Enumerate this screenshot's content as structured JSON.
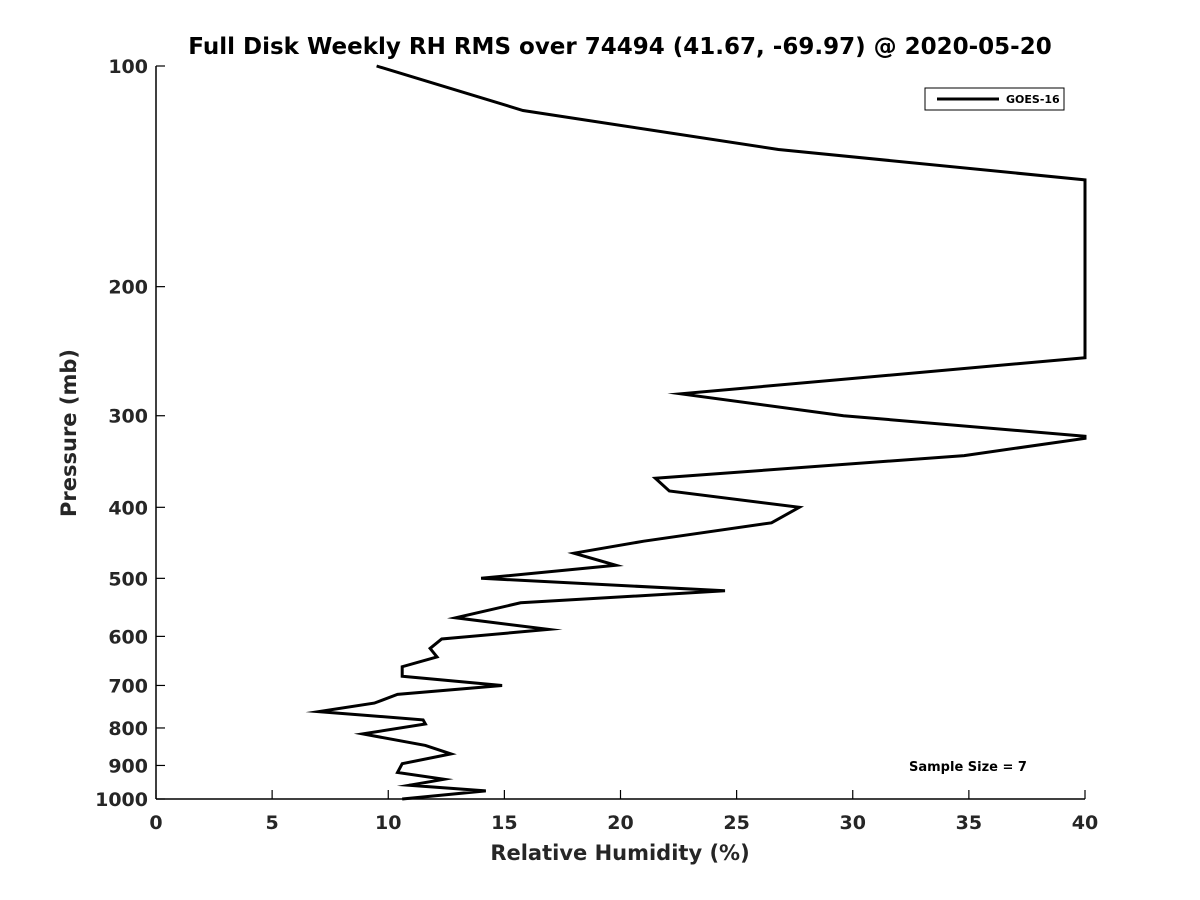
{
  "chart_data": {
    "type": "line",
    "title": "Full Disk Weekly RH RMS over 74494 (41.67, -69.97) @ 2020-05-20",
    "xlabel": "Relative Humidity (%)",
    "ylabel": "Pressure (mb)",
    "xlim": [
      0,
      40
    ],
    "ylim": [
      100,
      1000
    ],
    "y_scale": "log",
    "y_reversed": true,
    "grid": false,
    "legend_position": "top-right",
    "xticks": [
      "0",
      "5",
      "10",
      "15",
      "20",
      "25",
      "30",
      "35",
      "40"
    ],
    "yticks": [
      "100",
      "200",
      "300",
      "400",
      "500",
      "600",
      "700",
      "800",
      "900",
      "1000"
    ],
    "legend": [
      "GOES-16"
    ],
    "annotation": "Sample Size = 7",
    "series": [
      {
        "name": "GOES-16",
        "color": "#000000",
        "points": [
          [
            9.5,
            100
          ],
          [
            15.8,
            115
          ],
          [
            26.8,
            130
          ],
          [
            40.0,
            143
          ],
          [
            40.0,
            250
          ],
          [
            22.6,
            280
          ],
          [
            29.6,
            300
          ],
          [
            40.0,
            320
          ],
          [
            40.0,
            322
          ],
          [
            34.8,
            340
          ],
          [
            21.5,
            365
          ],
          [
            22.1,
            380
          ],
          [
            27.7,
            400
          ],
          [
            26.5,
            420
          ],
          [
            21.0,
            445
          ],
          [
            18.0,
            462
          ],
          [
            19.8,
            480
          ],
          [
            14.0,
            500
          ],
          [
            24.5,
            520
          ],
          [
            15.7,
            540
          ],
          [
            12.9,
            566
          ],
          [
            16.9,
            587
          ],
          [
            12.3,
            605
          ],
          [
            11.8,
            623
          ],
          [
            12.1,
            640
          ],
          [
            10.6,
            660
          ],
          [
            10.6,
            680
          ],
          [
            14.9,
            700
          ],
          [
            10.4,
            720
          ],
          [
            9.4,
            740
          ],
          [
            7.0,
            760
          ],
          [
            11.5,
            780
          ],
          [
            11.6,
            790
          ],
          [
            8.9,
            815
          ],
          [
            11.6,
            845
          ],
          [
            12.7,
            868
          ],
          [
            10.6,
            895
          ],
          [
            10.4,
            920
          ],
          [
            12.4,
            940
          ],
          [
            10.9,
            958
          ],
          [
            14.2,
            975
          ],
          [
            10.6,
            1000
          ]
        ]
      }
    ]
  }
}
